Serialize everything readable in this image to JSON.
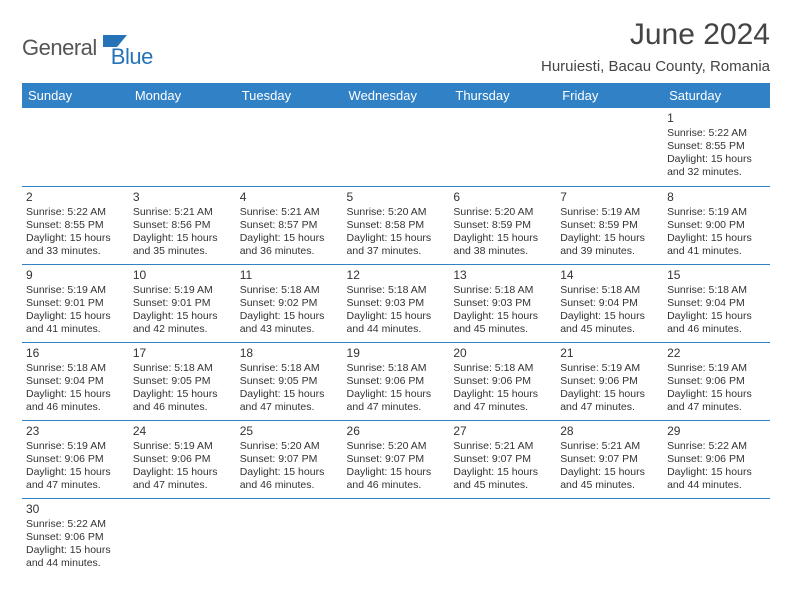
{
  "brand": {
    "part1": "General",
    "part2": "Blue"
  },
  "title": "June 2024",
  "location": "Huruiesti, Bacau County, Romania",
  "colors": {
    "header_bg": "#3081c6",
    "header_text": "#ffffff",
    "rule": "#3081c6",
    "brand_accent": "#2773b8"
  },
  "day_headers": [
    "Sunday",
    "Monday",
    "Tuesday",
    "Wednesday",
    "Thursday",
    "Friday",
    "Saturday"
  ],
  "weeks": [
    [
      null,
      null,
      null,
      null,
      null,
      null,
      {
        "n": "1",
        "sr": "Sunrise: 5:22 AM",
        "ss": "Sunset: 8:55 PM",
        "d1": "Daylight: 15 hours",
        "d2": "and 32 minutes."
      }
    ],
    [
      {
        "n": "2",
        "sr": "Sunrise: 5:22 AM",
        "ss": "Sunset: 8:55 PM",
        "d1": "Daylight: 15 hours",
        "d2": "and 33 minutes."
      },
      {
        "n": "3",
        "sr": "Sunrise: 5:21 AM",
        "ss": "Sunset: 8:56 PM",
        "d1": "Daylight: 15 hours",
        "d2": "and 35 minutes."
      },
      {
        "n": "4",
        "sr": "Sunrise: 5:21 AM",
        "ss": "Sunset: 8:57 PM",
        "d1": "Daylight: 15 hours",
        "d2": "and 36 minutes."
      },
      {
        "n": "5",
        "sr": "Sunrise: 5:20 AM",
        "ss": "Sunset: 8:58 PM",
        "d1": "Daylight: 15 hours",
        "d2": "and 37 minutes."
      },
      {
        "n": "6",
        "sr": "Sunrise: 5:20 AM",
        "ss": "Sunset: 8:59 PM",
        "d1": "Daylight: 15 hours",
        "d2": "and 38 minutes."
      },
      {
        "n": "7",
        "sr": "Sunrise: 5:19 AM",
        "ss": "Sunset: 8:59 PM",
        "d1": "Daylight: 15 hours",
        "d2": "and 39 minutes."
      },
      {
        "n": "8",
        "sr": "Sunrise: 5:19 AM",
        "ss": "Sunset: 9:00 PM",
        "d1": "Daylight: 15 hours",
        "d2": "and 41 minutes."
      }
    ],
    [
      {
        "n": "9",
        "sr": "Sunrise: 5:19 AM",
        "ss": "Sunset: 9:01 PM",
        "d1": "Daylight: 15 hours",
        "d2": "and 41 minutes."
      },
      {
        "n": "10",
        "sr": "Sunrise: 5:19 AM",
        "ss": "Sunset: 9:01 PM",
        "d1": "Daylight: 15 hours",
        "d2": "and 42 minutes."
      },
      {
        "n": "11",
        "sr": "Sunrise: 5:18 AM",
        "ss": "Sunset: 9:02 PM",
        "d1": "Daylight: 15 hours",
        "d2": "and 43 minutes."
      },
      {
        "n": "12",
        "sr": "Sunrise: 5:18 AM",
        "ss": "Sunset: 9:03 PM",
        "d1": "Daylight: 15 hours",
        "d2": "and 44 minutes."
      },
      {
        "n": "13",
        "sr": "Sunrise: 5:18 AM",
        "ss": "Sunset: 9:03 PM",
        "d1": "Daylight: 15 hours",
        "d2": "and 45 minutes."
      },
      {
        "n": "14",
        "sr": "Sunrise: 5:18 AM",
        "ss": "Sunset: 9:04 PM",
        "d1": "Daylight: 15 hours",
        "d2": "and 45 minutes."
      },
      {
        "n": "15",
        "sr": "Sunrise: 5:18 AM",
        "ss": "Sunset: 9:04 PM",
        "d1": "Daylight: 15 hours",
        "d2": "and 46 minutes."
      }
    ],
    [
      {
        "n": "16",
        "sr": "Sunrise: 5:18 AM",
        "ss": "Sunset: 9:04 PM",
        "d1": "Daylight: 15 hours",
        "d2": "and 46 minutes."
      },
      {
        "n": "17",
        "sr": "Sunrise: 5:18 AM",
        "ss": "Sunset: 9:05 PM",
        "d1": "Daylight: 15 hours",
        "d2": "and 46 minutes."
      },
      {
        "n": "18",
        "sr": "Sunrise: 5:18 AM",
        "ss": "Sunset: 9:05 PM",
        "d1": "Daylight: 15 hours",
        "d2": "and 47 minutes."
      },
      {
        "n": "19",
        "sr": "Sunrise: 5:18 AM",
        "ss": "Sunset: 9:06 PM",
        "d1": "Daylight: 15 hours",
        "d2": "and 47 minutes."
      },
      {
        "n": "20",
        "sr": "Sunrise: 5:18 AM",
        "ss": "Sunset: 9:06 PM",
        "d1": "Daylight: 15 hours",
        "d2": "and 47 minutes."
      },
      {
        "n": "21",
        "sr": "Sunrise: 5:19 AM",
        "ss": "Sunset: 9:06 PM",
        "d1": "Daylight: 15 hours",
        "d2": "and 47 minutes."
      },
      {
        "n": "22",
        "sr": "Sunrise: 5:19 AM",
        "ss": "Sunset: 9:06 PM",
        "d1": "Daylight: 15 hours",
        "d2": "and 47 minutes."
      }
    ],
    [
      {
        "n": "23",
        "sr": "Sunrise: 5:19 AM",
        "ss": "Sunset: 9:06 PM",
        "d1": "Daylight: 15 hours",
        "d2": "and 47 minutes."
      },
      {
        "n": "24",
        "sr": "Sunrise: 5:19 AM",
        "ss": "Sunset: 9:06 PM",
        "d1": "Daylight: 15 hours",
        "d2": "and 47 minutes."
      },
      {
        "n": "25",
        "sr": "Sunrise: 5:20 AM",
        "ss": "Sunset: 9:07 PM",
        "d1": "Daylight: 15 hours",
        "d2": "and 46 minutes."
      },
      {
        "n": "26",
        "sr": "Sunrise: 5:20 AM",
        "ss": "Sunset: 9:07 PM",
        "d1": "Daylight: 15 hours",
        "d2": "and 46 minutes."
      },
      {
        "n": "27",
        "sr": "Sunrise: 5:21 AM",
        "ss": "Sunset: 9:07 PM",
        "d1": "Daylight: 15 hours",
        "d2": "and 45 minutes."
      },
      {
        "n": "28",
        "sr": "Sunrise: 5:21 AM",
        "ss": "Sunset: 9:07 PM",
        "d1": "Daylight: 15 hours",
        "d2": "and 45 minutes."
      },
      {
        "n": "29",
        "sr": "Sunrise: 5:22 AM",
        "ss": "Sunset: 9:06 PM",
        "d1": "Daylight: 15 hours",
        "d2": "and 44 minutes."
      }
    ],
    [
      {
        "n": "30",
        "sr": "Sunrise: 5:22 AM",
        "ss": "Sunset: 9:06 PM",
        "d1": "Daylight: 15 hours",
        "d2": "and 44 minutes."
      },
      null,
      null,
      null,
      null,
      null,
      null
    ]
  ]
}
